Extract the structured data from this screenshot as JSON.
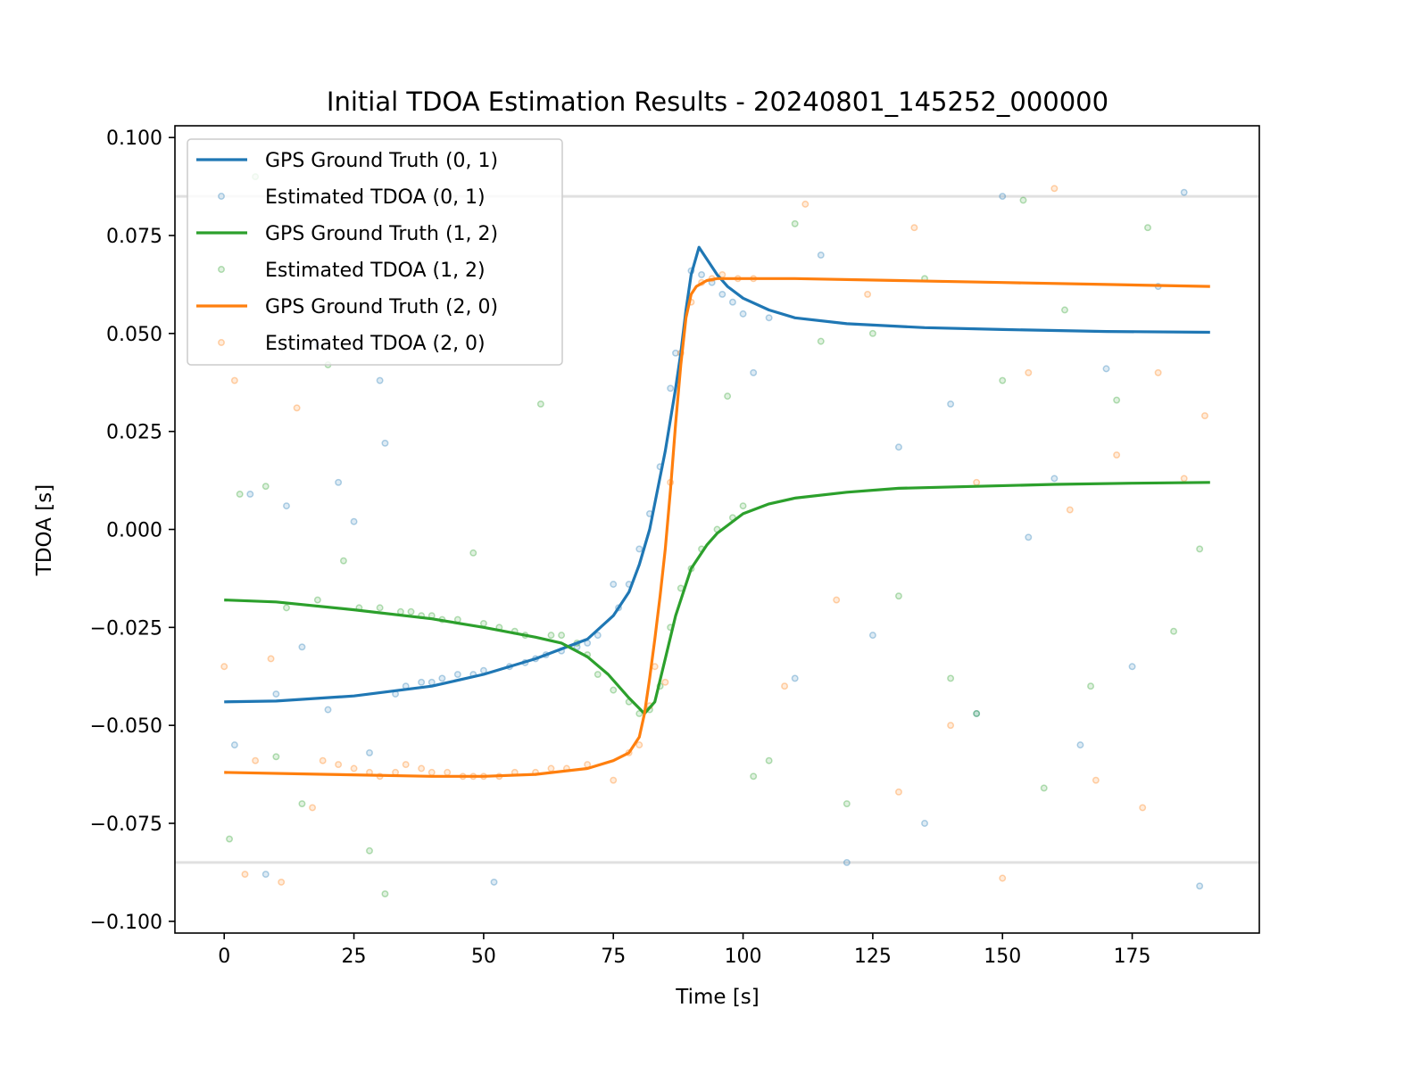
{
  "chart_data": {
    "type": "line",
    "title": "Initial TDOA Estimation Results - 20240801_145252_000000",
    "xlabel": "Time [s]",
    "ylabel": "TDOA [s]",
    "xlim": [
      -9.5,
      199.5
    ],
    "ylim": [
      -0.103,
      0.103
    ],
    "xticks": [
      0,
      25,
      50,
      75,
      100,
      125,
      150,
      175
    ],
    "xtick_labels": [
      "0",
      "25",
      "50",
      "75",
      "100",
      "125",
      "150",
      "175"
    ],
    "yticks": [
      0.1,
      0.075,
      0.05,
      0.025,
      0,
      -0.025,
      -0.05,
      -0.075,
      -0.1
    ],
    "ytick_labels": [
      "0.100",
      "0.075",
      "0.050",
      "0.025",
      "0.000",
      "−0.025",
      "−0.050",
      "−0.075",
      "−0.100"
    ],
    "grid": false,
    "legend_position": "top-left",
    "reference_lines": {
      "values": [
        0.085,
        -0.085
      ],
      "color": "#e0e0e0"
    },
    "series": [
      {
        "name": "GPS Ground Truth (0, 1)",
        "kind": "line",
        "color": "#1f77b4",
        "x": [
          0,
          10,
          25,
          40,
          50,
          60,
          70,
          75,
          78,
          80,
          82,
          85,
          87,
          88,
          89,
          90,
          91.5,
          93,
          95,
          97,
          100,
          105,
          110,
          120,
          135,
          150,
          170,
          190
        ],
        "y": [
          -0.044,
          -0.0438,
          -0.0425,
          -0.04,
          -0.037,
          -0.033,
          -0.028,
          -0.022,
          -0.016,
          -0.009,
          0.0,
          0.02,
          0.036,
          0.045,
          0.056,
          0.065,
          0.072,
          0.069,
          0.065,
          0.062,
          0.059,
          0.056,
          0.054,
          0.0525,
          0.0515,
          0.051,
          0.0505,
          0.0503
        ]
      },
      {
        "name": "Estimated TDOA (0, 1)",
        "kind": "scatter",
        "color": "#1f77b4",
        "x": [
          2,
          5,
          8,
          10,
          12,
          15,
          18,
          20,
          22,
          25,
          28,
          30,
          31,
          33,
          35,
          38,
          40,
          42,
          45,
          48,
          50,
          52,
          55,
          58,
          60,
          62,
          65,
          68,
          70,
          72,
          75,
          76,
          78,
          80,
          82,
          84,
          86,
          87,
          90,
          92,
          94,
          96,
          98,
          100,
          102,
          105,
          110,
          115,
          120,
          125,
          130,
          135,
          140,
          145,
          150,
          155,
          160,
          165,
          170,
          175,
          180,
          185,
          188
        ],
        "y": [
          -0.055,
          0.009,
          -0.088,
          -0.042,
          0.006,
          -0.03,
          0.047,
          -0.046,
          0.012,
          0.002,
          -0.057,
          0.038,
          0.022,
          -0.042,
          -0.04,
          -0.039,
          -0.039,
          -0.038,
          -0.037,
          -0.037,
          -0.036,
          -0.09,
          -0.035,
          -0.034,
          -0.033,
          -0.032,
          -0.031,
          -0.03,
          -0.029,
          -0.027,
          -0.014,
          -0.02,
          -0.014,
          -0.005,
          0.004,
          0.016,
          0.036,
          0.045,
          0.066,
          0.065,
          0.063,
          0.06,
          0.058,
          0.055,
          0.04,
          0.054,
          -0.038,
          0.07,
          -0.085,
          -0.027,
          0.021,
          -0.075,
          0.032,
          -0.047,
          0.085,
          -0.002,
          0.013,
          -0.055,
          0.041,
          -0.035,
          0.062,
          0.086,
          -0.091
        ]
      },
      {
        "name": "GPS Ground Truth (1, 2)",
        "kind": "line",
        "color": "#2ca02c",
        "x": [
          0,
          10,
          25,
          40,
          50,
          60,
          65,
          70,
          74,
          78,
          81,
          83,
          85,
          87,
          90,
          93,
          95,
          100,
          105,
          110,
          120,
          130,
          145,
          160,
          175,
          190
        ],
        "y": [
          -0.018,
          -0.0185,
          -0.0205,
          -0.0228,
          -0.025,
          -0.0275,
          -0.029,
          -0.0325,
          -0.037,
          -0.043,
          -0.047,
          -0.044,
          -0.033,
          -0.022,
          -0.01,
          -0.004,
          -0.001,
          0.004,
          0.0065,
          0.008,
          0.0095,
          0.0105,
          0.011,
          0.0115,
          0.0118,
          0.012
        ]
      },
      {
        "name": "Estimated TDOA (1, 2)",
        "kind": "scatter",
        "color": "#2ca02c",
        "x": [
          1,
          3,
          6,
          8,
          10,
          12,
          15,
          18,
          20,
          23,
          26,
          28,
          30,
          31,
          34,
          36,
          38,
          40,
          42,
          45,
          48,
          50,
          53,
          56,
          58,
          61,
          63,
          65,
          68,
          70,
          72,
          75,
          78,
          80,
          82,
          84,
          86,
          88,
          90,
          92,
          95,
          97,
          98,
          100,
          102,
          105,
          110,
          115,
          120,
          125,
          130,
          135,
          140,
          145,
          150,
          154,
          158,
          162,
          167,
          172,
          178,
          183,
          188
        ],
        "y": [
          -0.079,
          0.009,
          0.09,
          0.011,
          -0.058,
          -0.02,
          -0.07,
          -0.018,
          0.042,
          -0.008,
          -0.02,
          -0.082,
          -0.02,
          -0.093,
          -0.021,
          -0.021,
          -0.022,
          -0.022,
          -0.023,
          -0.023,
          -0.006,
          -0.024,
          -0.025,
          -0.026,
          -0.027,
          0.032,
          -0.027,
          -0.027,
          -0.029,
          -0.032,
          -0.037,
          -0.041,
          -0.044,
          -0.047,
          -0.046,
          -0.04,
          -0.025,
          -0.015,
          -0.01,
          -0.005,
          0.0,
          0.034,
          0.003,
          0.006,
          -0.063,
          -0.059,
          0.078,
          0.048,
          -0.07,
          0.05,
          -0.017,
          0.064,
          -0.038,
          -0.047,
          0.038,
          0.084,
          -0.066,
          0.056,
          -0.04,
          0.033,
          0.077,
          -0.026,
          -0.005
        ]
      },
      {
        "name": "GPS Ground Truth (2, 0)",
        "kind": "line",
        "color": "#ff7f0e",
        "x": [
          0,
          20,
          40,
          50,
          60,
          70,
          75,
          78,
          80,
          81,
          82,
          83,
          84,
          85,
          86,
          87,
          88,
          89,
          90,
          91,
          93,
          95,
          100,
          110,
          130,
          150,
          170,
          190
        ],
        "y": [
          -0.062,
          -0.0625,
          -0.063,
          -0.063,
          -0.0625,
          -0.061,
          -0.059,
          -0.057,
          -0.053,
          -0.047,
          -0.038,
          -0.028,
          -0.017,
          -0.005,
          0.01,
          0.027,
          0.042,
          0.054,
          0.06,
          0.062,
          0.0635,
          0.064,
          0.064,
          0.064,
          0.0635,
          0.063,
          0.0625,
          0.062
        ]
      },
      {
        "name": "Estimated TDOA (2, 0)",
        "kind": "scatter",
        "color": "#ff7f0e",
        "x": [
          0,
          2,
          4,
          6,
          9,
          11,
          14,
          17,
          19,
          22,
          25,
          28,
          30,
          33,
          35,
          38,
          40,
          43,
          46,
          48,
          50,
          53,
          56,
          60,
          63,
          66,
          70,
          75,
          78,
          80,
          82,
          83,
          85,
          86,
          88,
          90,
          92,
          94,
          96,
          99,
          102,
          108,
          112,
          118,
          124,
          130,
          133,
          140,
          145,
          150,
          155,
          160,
          163,
          168,
          172,
          177,
          180,
          185,
          189
        ],
        "y": [
          -0.035,
          0.038,
          -0.088,
          -0.059,
          -0.033,
          -0.09,
          0.031,
          -0.071,
          -0.059,
          -0.06,
          -0.061,
          -0.062,
          -0.063,
          -0.062,
          -0.06,
          -0.061,
          -0.062,
          -0.062,
          -0.063,
          -0.063,
          -0.063,
          -0.063,
          -0.062,
          -0.062,
          -0.061,
          -0.061,
          -0.06,
          -0.064,
          -0.057,
          -0.055,
          -0.045,
          -0.035,
          -0.039,
          0.012,
          0.045,
          0.058,
          0.063,
          0.064,
          0.065,
          0.064,
          0.064,
          -0.04,
          0.083,
          -0.018,
          0.06,
          -0.067,
          0.077,
          -0.05,
          0.012,
          -0.089,
          0.04,
          0.087,
          0.005,
          -0.064,
          0.019,
          -0.071,
          0.04,
          0.013,
          0.029
        ]
      }
    ]
  }
}
